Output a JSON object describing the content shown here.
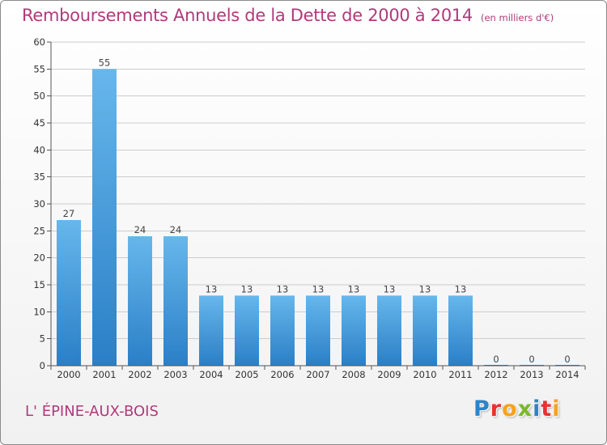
{
  "title": "Remboursements Annuels de la Dette de 2000 à 2014",
  "subtitle": "(en milliers d'€)",
  "place_name": "L' ÉPINE-AUX-BOIS",
  "brand": {
    "letters": [
      "P",
      "r",
      "o",
      "x",
      "i",
      "t",
      "i"
    ],
    "colors": [
      "#2c84c8",
      "#e8312f",
      "#f6a21b",
      "#7ab929",
      "#2c84c8",
      "#e8312f",
      "#f6a21b"
    ]
  },
  "colors": {
    "title": "#b03a7a",
    "bar_light": "#67b7ec",
    "bar_dark": "#2a7fc6",
    "grid": "#cccccc",
    "axis": "#555555"
  },
  "chart_data": {
    "type": "bar",
    "title": "Remboursements Annuels de la Dette de 2000 à 2014",
    "subtitle": "(en milliers d'€)",
    "categories": [
      "2000",
      "2001",
      "2002",
      "2003",
      "2004",
      "2005",
      "2006",
      "2007",
      "2008",
      "2009",
      "2010",
      "2011",
      "2012",
      "2013",
      "2014"
    ],
    "values": [
      27,
      55,
      24,
      24,
      13,
      13,
      13,
      13,
      13,
      13,
      13,
      13,
      0,
      0,
      0
    ],
    "value_labels": [
      "27",
      "55",
      "24",
      "24",
      "13",
      "13",
      "13",
      "13",
      "13",
      "13",
      "13",
      "13",
      "0",
      "0",
      "0"
    ],
    "ylim": [
      0,
      60
    ],
    "yticks": [
      0,
      5,
      10,
      15,
      20,
      25,
      30,
      35,
      40,
      45,
      50,
      55,
      60
    ],
    "grid": true,
    "xlabel": "",
    "ylabel": ""
  }
}
